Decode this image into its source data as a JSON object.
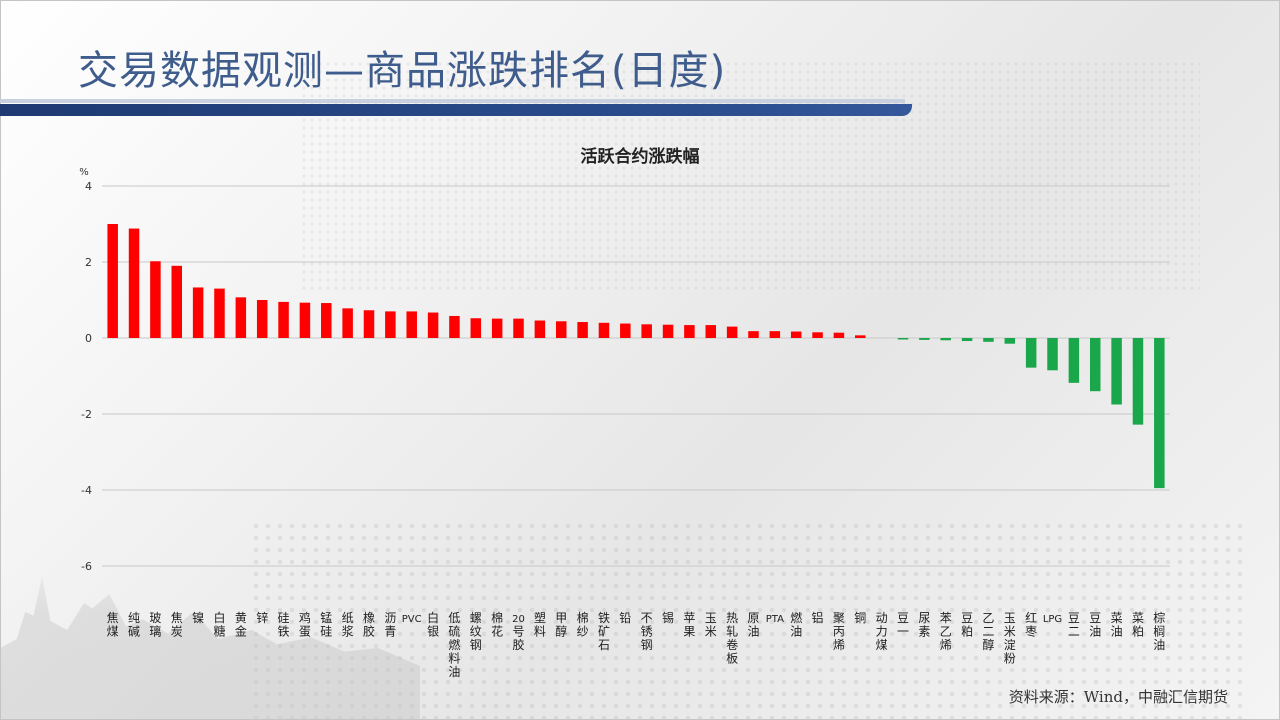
{
  "header": {
    "title": "交易数据观测—商品涨跌排名(日度)"
  },
  "footer": {
    "source": "资料来源：Wind，中融汇信期货"
  },
  "chart_data": {
    "type": "bar",
    "title": "活跃合约涨跌幅",
    "ylabel": "%",
    "xlabel": "",
    "ylim": [
      -6,
      4
    ],
    "yticks": [
      4,
      2,
      0,
      -2,
      -4,
      -6
    ],
    "grid": true,
    "positive_color": "#ff0000",
    "negative_color": "#1aa64a",
    "categories": [
      "焦煤",
      "纯碱",
      "玻璃",
      "焦炭",
      "镍",
      "白糖",
      "黄金",
      "锌",
      "硅铁",
      "鸡蛋",
      "锰硅",
      "纸浆",
      "橡胶",
      "沥青",
      "PVC",
      "白银",
      "低硫燃料油",
      "螺纹钢",
      "棉花",
      "20号胶",
      "塑料",
      "甲醇",
      "棉纱",
      "铁矿石",
      "铅",
      "不锈钢",
      "锡",
      "苹果",
      "玉米",
      "热轧卷板",
      "原油",
      "PTA",
      "燃油",
      "铝",
      "聚丙烯",
      "铜",
      "动力煤",
      "豆一",
      "尿素",
      "苯乙烯",
      "豆粕",
      "乙二醇",
      "玉米淀粉",
      "红枣",
      "LPG",
      "豆二",
      "豆油",
      "菜油",
      "菜粕",
      "棕榈油"
    ],
    "values": [
      3.0,
      2.88,
      2.02,
      1.9,
      1.33,
      1.3,
      1.07,
      1.0,
      0.95,
      0.93,
      0.92,
      0.78,
      0.73,
      0.7,
      0.7,
      0.67,
      0.58,
      0.52,
      0.51,
      0.51,
      0.46,
      0.44,
      0.42,
      0.4,
      0.38,
      0.36,
      0.35,
      0.34,
      0.34,
      0.3,
      0.18,
      0.18,
      0.17,
      0.15,
      0.14,
      0.07,
      0.0,
      -0.03,
      -0.05,
      -0.06,
      -0.08,
      -0.1,
      -0.15,
      -0.78,
      -0.85,
      -1.18,
      -1.4,
      -1.75,
      -2.28,
      -3.95
    ]
  }
}
